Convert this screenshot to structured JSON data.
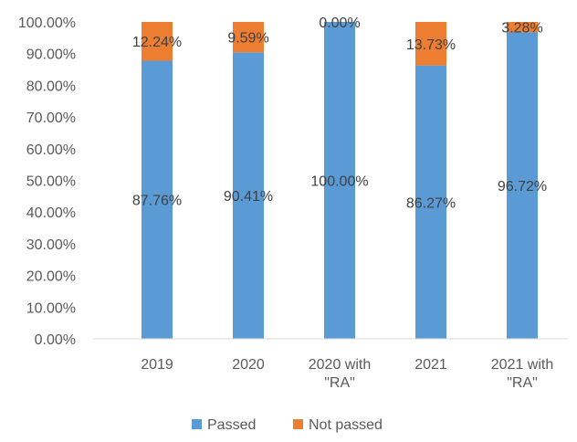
{
  "chart_data": {
    "type": "bar",
    "stacked": true,
    "percent_stacked": true,
    "title": "",
    "xlabel": "",
    "ylabel": "",
    "ylim": [
      0,
      100
    ],
    "y_tick_step": 10,
    "y_tick_format": "percent_2dp",
    "grid": false,
    "legend_position": "bottom",
    "categories": [
      "2019",
      "2020",
      "2020 with \"RA\"",
      "2021",
      "2021 with \"RA\""
    ],
    "category_label_lines": [
      [
        "2019"
      ],
      [
        "2020"
      ],
      [
        "2020 with",
        "\"RA\""
      ],
      [
        "2021"
      ],
      [
        "2021 with",
        "\"RA\""
      ]
    ],
    "series": [
      {
        "name": "Passed",
        "color": "#5B9BD5",
        "values": [
          87.76,
          90.41,
          100.0,
          86.27,
          96.72
        ],
        "labels": [
          "87.76%",
          "90.41%",
          "100.00%",
          "86.27%",
          "96.72%"
        ]
      },
      {
        "name": "Not passed",
        "color": "#ED7D31",
        "values": [
          12.24,
          9.59,
          0.0,
          13.73,
          3.28
        ],
        "labels": [
          "12.24%",
          "9.59%",
          "0.00%",
          "13.73%",
          "3.28%"
        ]
      }
    ],
    "y_tick_labels": [
      "0.00%",
      "10.00%",
      "20.00%",
      "30.00%",
      "40.00%",
      "50.00%",
      "60.00%",
      "70.00%",
      "80.00%",
      "90.00%",
      "100.00%"
    ]
  }
}
